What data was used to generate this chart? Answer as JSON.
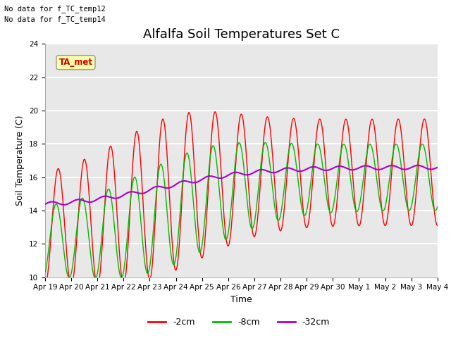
{
  "title": "Alfalfa Soil Temperatures Set C",
  "ylabel": "Soil Temperature (C)",
  "xlabel": "Time",
  "no_data_text": [
    "No data for f_TC_temp12",
    "No data for f_TC_temp14"
  ],
  "ta_met_label": "TA_met",
  "ylim": [
    10,
    24
  ],
  "yticks": [
    10,
    12,
    14,
    16,
    18,
    20,
    22,
    24
  ],
  "plot_bg_color": "#e8e8e8",
  "line_colors": {
    "2cm": "#ff0000",
    "8cm": "#00bb00",
    "32cm": "#aa00cc"
  },
  "legend_labels": [
    "-2cm",
    "-8cm",
    "-32cm"
  ],
  "legend_colors": [
    "#ff0000",
    "#00bb00",
    "#aa00cc"
  ],
  "x_tick_labels": [
    "Apr 19",
    "Apr 20",
    "Apr 21",
    "Apr 22",
    "Apr 23",
    "Apr 24",
    "Apr 25",
    "Apr 26",
    "Apr 27",
    "Apr 28",
    "Apr 29",
    "Apr 30",
    "May 1",
    "May 2",
    "May 3",
    "May 4"
  ],
  "title_fontsize": 13,
  "axis_label_fontsize": 9,
  "tick_fontsize": 7.5,
  "grid_color": "#ffffff",
  "grid_linewidth": 1.5
}
